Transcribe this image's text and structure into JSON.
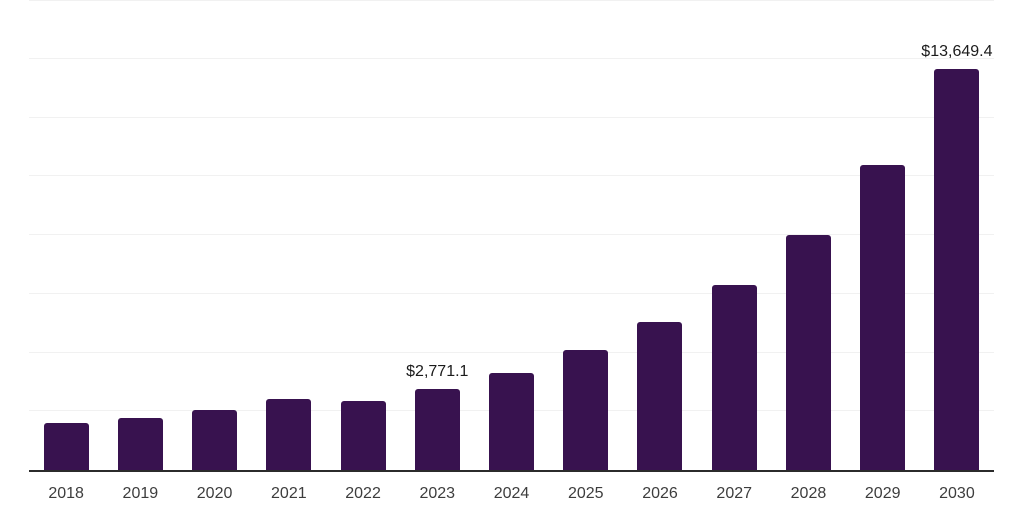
{
  "chart_data": {
    "type": "bar",
    "title": "",
    "xlabel": "",
    "ylabel": "",
    "categories": [
      "2018",
      "2019",
      "2020",
      "2021",
      "2022",
      "2023",
      "2024",
      "2025",
      "2026",
      "2027",
      "2028",
      "2029",
      "2030"
    ],
    "values": [
      1615,
      1765,
      2045,
      2425,
      2360,
      2771.1,
      3320,
      4090,
      5040,
      6300,
      8000,
      10385,
      13649.4
    ],
    "annotations": [
      {
        "category": "2023",
        "text": "$2,771.1"
      },
      {
        "category": "2030",
        "text": "$13,649.4"
      }
    ],
    "ylim": [
      0,
      16000
    ],
    "gridline_step": 2000,
    "grid": true,
    "legend": false,
    "y_axis_labels_visible": false,
    "colors": {
      "bar": "#38124F",
      "axis": "#2b2b2b",
      "gridline": "#f1f1f1",
      "value_label": "#1b1b1b",
      "tick_label": "#3d3d3d",
      "background": "#ffffff"
    }
  }
}
